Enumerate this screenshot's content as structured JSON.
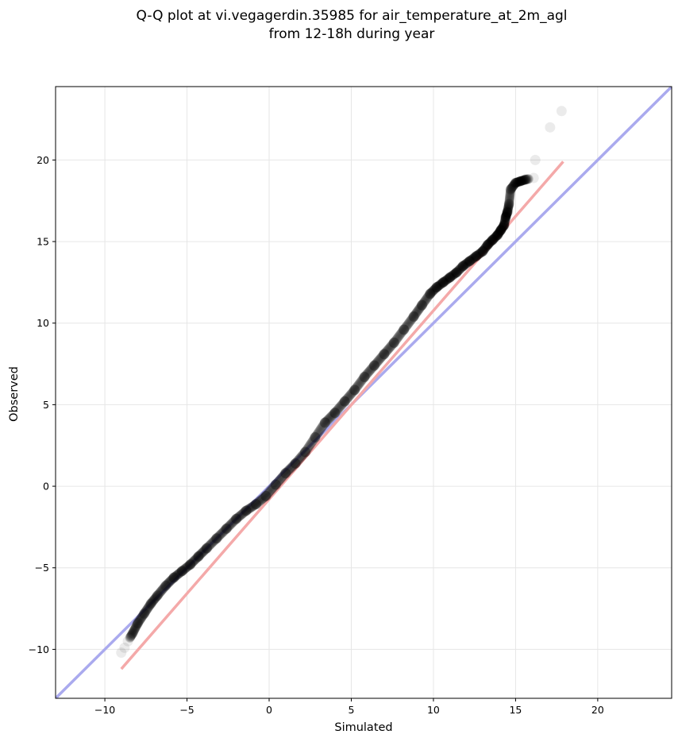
{
  "chart_data": {
    "type": "scatter",
    "title": "Q-Q plot at vi.vegagerdin.35985 for air_temperature_at_2m_agl",
    "subtitle": "from 12-18h during year",
    "xlabel": "Simulated",
    "ylabel": "Observed",
    "xlim": [
      -13,
      24.5
    ],
    "ylim": [
      -13,
      24.5
    ],
    "xticks": [
      -10,
      -5,
      0,
      5,
      10,
      15,
      20
    ],
    "yticks": [
      -10,
      -5,
      0,
      5,
      10,
      15,
      20
    ],
    "tick_labels_x": [
      "−10",
      "−5",
      "0",
      "5",
      "10",
      "15",
      "20"
    ],
    "tick_labels_y": [
      "−10",
      "−5",
      "0",
      "5",
      "10",
      "15",
      "20"
    ],
    "grid": true,
    "colors": {
      "points": "#000000",
      "identity_line": "#aaaaee",
      "fit_line": "#f4a9a9",
      "grid": "#e6e6e6"
    },
    "identity_line": {
      "x": [
        -13,
        24.5
      ],
      "y": [
        -13,
        24.5
      ]
    },
    "fit_line": {
      "x": [
        -9,
        17.9
      ],
      "y": [
        -11.2,
        19.9
      ]
    },
    "quantiles_sim": [
      -9.0,
      -8.8,
      -8.6,
      -8.3,
      -8.0,
      -7.6,
      -7.2,
      -6.8,
      -6.3,
      -5.8,
      -5.3,
      -4.8,
      -4.3,
      -3.8,
      -3.2,
      -2.6,
      -2.0,
      -1.4,
      -0.8,
      -0.2,
      0.4,
      1.0,
      1.6,
      2.2,
      2.8,
      3.4,
      4.0,
      4.6,
      5.2,
      5.8,
      6.4,
      7.0,
      7.6,
      8.2,
      8.8,
      9.3,
      9.8,
      10.2,
      10.6,
      11.0,
      11.4,
      11.8,
      12.2,
      12.6,
      13.0,
      13.3,
      13.6,
      13.9,
      14.1,
      14.3,
      14.4,
      14.5,
      14.6,
      14.7,
      15.0,
      15.3,
      15.6,
      16.1,
      16.2,
      17.1,
      17.8
    ],
    "quantiles_obs": [
      -10.2,
      -9.9,
      -9.5,
      -9.0,
      -8.4,
      -7.8,
      -7.2,
      -6.7,
      -6.1,
      -5.6,
      -5.2,
      -4.8,
      -4.3,
      -3.8,
      -3.2,
      -2.6,
      -2.0,
      -1.5,
      -1.1,
      -0.6,
      0.1,
      0.8,
      1.4,
      2.1,
      3.0,
      3.9,
      4.5,
      5.2,
      5.9,
      6.7,
      7.4,
      8.1,
      8.8,
      9.6,
      10.4,
      11.1,
      11.8,
      12.2,
      12.5,
      12.8,
      13.1,
      13.5,
      13.8,
      14.1,
      14.4,
      14.8,
      15.1,
      15.4,
      15.7,
      16.0,
      16.5,
      16.8,
      17.3,
      18.2,
      18.6,
      18.7,
      18.8,
      18.9,
      20.0,
      22.0,
      23.0
    ]
  }
}
